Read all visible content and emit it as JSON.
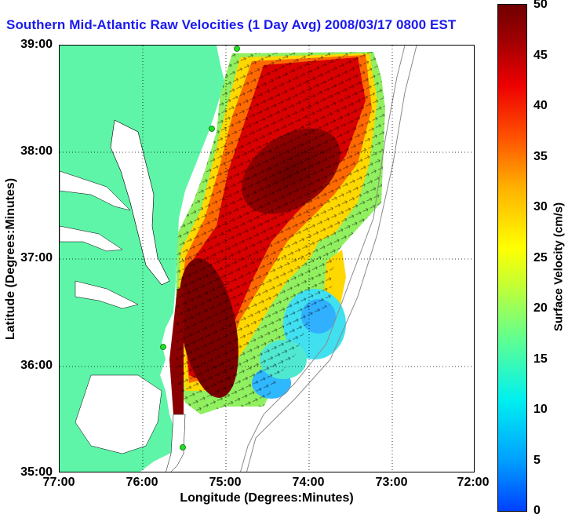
{
  "title": "Southern Mid-Atlantic Raw Velocities (1 Day Avg) 2008/03/17 0800 EST",
  "x_axis": {
    "label": "Longitude (Degrees:Minutes)",
    "ticks": [
      "77:00",
      "76:00",
      "75:00",
      "74:00",
      "73:00",
      "72:00"
    ]
  },
  "y_axis": {
    "label": "Latitude (Degrees:Minutes)",
    "ticks": [
      "39:00",
      "38:00",
      "37:00",
      "36:00",
      "35:00"
    ]
  },
  "colorbar": {
    "label": "Surface Velocity (cm/s)",
    "ticks": [
      "50",
      "45",
      "40",
      "35",
      "30",
      "25",
      "20",
      "15",
      "10",
      "5",
      "0"
    ],
    "min": 0,
    "max": 50,
    "colormap": "jet"
  },
  "map": {
    "land_color": "#5ef5a8",
    "water_color": "#ffffff",
    "gridlines": "dotted",
    "stations": 4,
    "station_color": "#22dd22"
  }
}
